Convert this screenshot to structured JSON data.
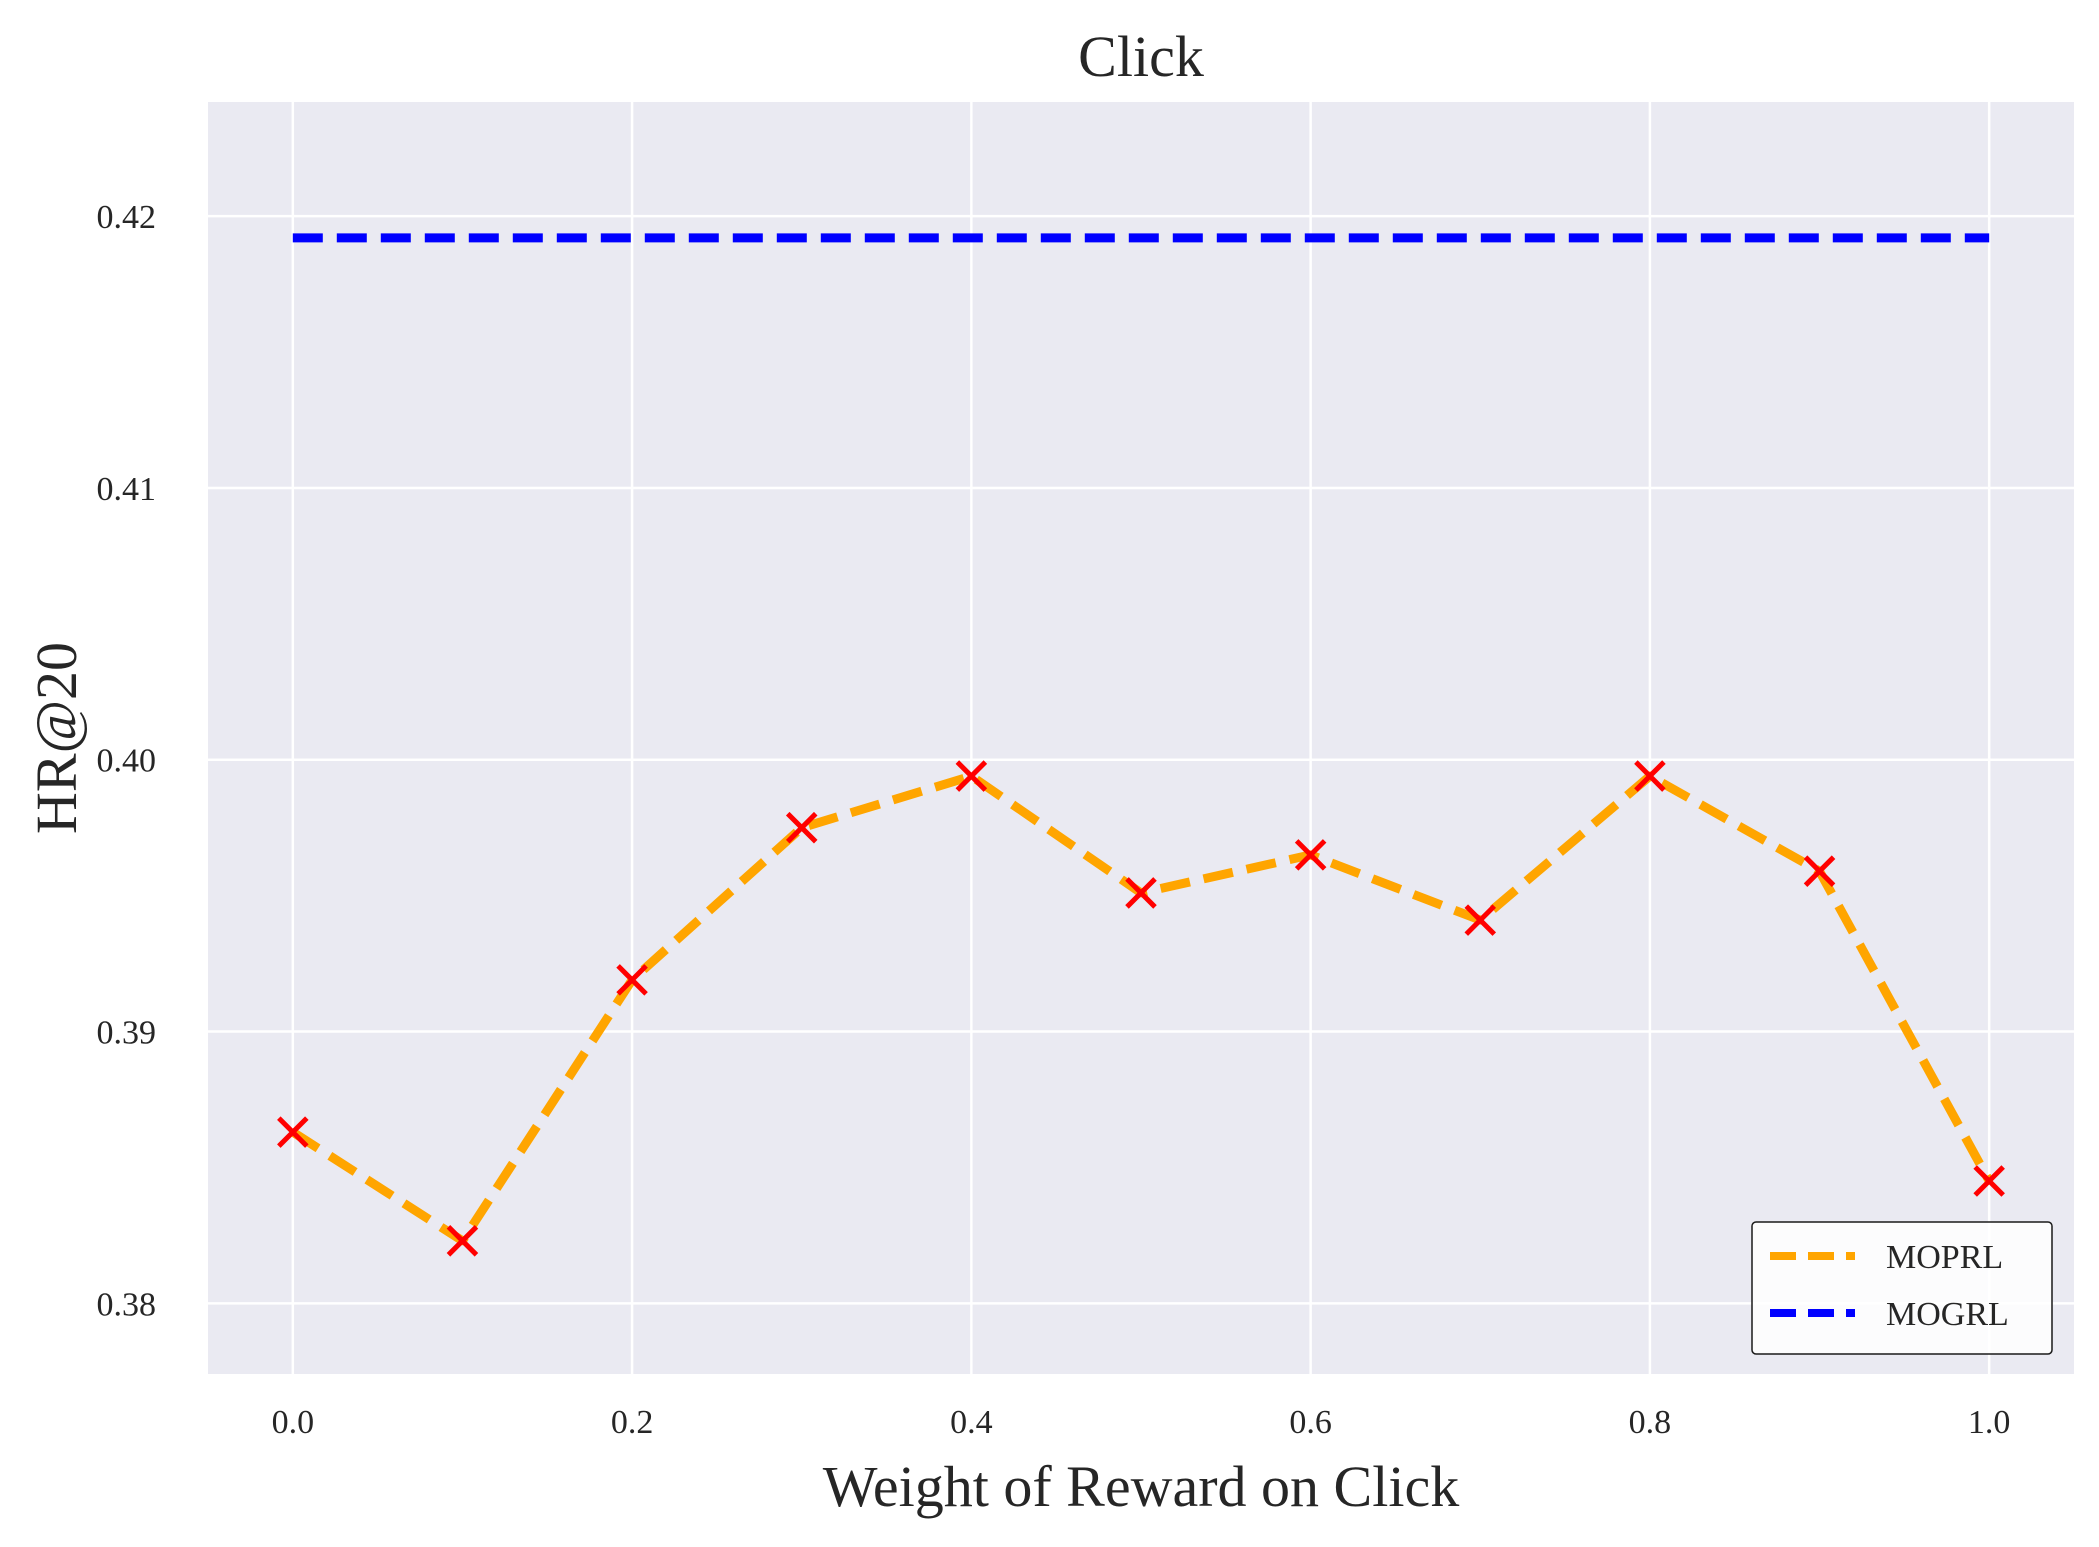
{
  "chart_data": {
    "type": "line",
    "title": "Click",
    "xlabel": "Weight of Reward on Click",
    "ylabel": "HR@20",
    "xlim": [
      -0.05,
      1.05
    ],
    "ylim": [
      0.3774,
      0.4242
    ],
    "x_ticks": [
      0.0,
      0.2,
      0.4,
      0.6,
      0.8,
      1.0
    ],
    "x_tick_labels": [
      "0.0",
      "0.2",
      "0.4",
      "0.6",
      "0.8",
      "1.0"
    ],
    "y_ticks": [
      0.38,
      0.39,
      0.4,
      0.41,
      0.42
    ],
    "y_tick_labels": [
      "0.38",
      "0.39",
      "0.40",
      "0.41",
      "0.42"
    ],
    "grid": true,
    "legend_position": "bottom-right",
    "background_color": "#EAEAF2",
    "grid_color": "#FFFFFF",
    "series": [
      {
        "name": "MOPRL",
        "color": "#FFA500",
        "line_style": "dashed",
        "marker": "x",
        "marker_color": "#FF0000",
        "x": [
          0.0,
          0.1,
          0.2,
          0.3,
          0.4,
          0.5,
          0.6,
          0.7,
          0.8,
          0.9,
          1.0
        ],
        "y": [
          0.3863,
          0.3823,
          0.3919,
          0.3975,
          0.3994,
          0.3951,
          0.3965,
          0.3941,
          0.3994,
          0.3959,
          0.3845
        ]
      },
      {
        "name": "MOGRL",
        "color": "#0000FF",
        "line_style": "dashed",
        "marker": "none",
        "x": [
          0.0,
          1.0
        ],
        "y": [
          0.4192,
          0.4192
        ]
      }
    ]
  }
}
